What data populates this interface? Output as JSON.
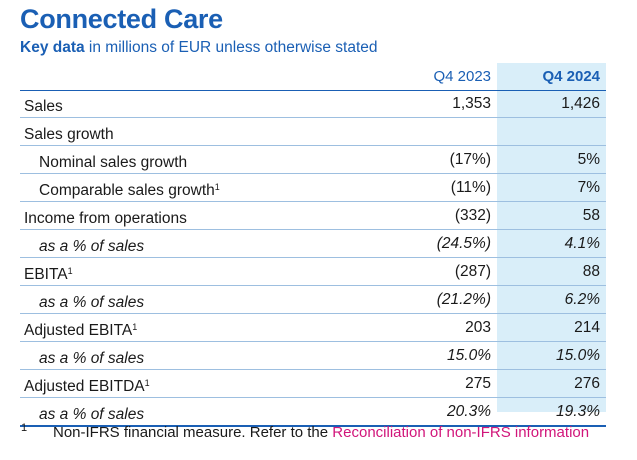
{
  "title": "Connected Care",
  "subtitle": {
    "bold": "Key data",
    "rest": " in millions of EUR unless otherwise stated"
  },
  "columns": {
    "prev": "Q4 2023",
    "curr": "Q4 2024"
  },
  "rows": [
    {
      "label": "Sales",
      "sup": "",
      "prev": "1,353",
      "curr": "1,426"
    },
    {
      "label": "Sales growth",
      "sup": "",
      "prev": "",
      "curr": ""
    },
    {
      "label": "Nominal sales growth",
      "sup": "",
      "prev": "(17%)",
      "curr": "5%"
    },
    {
      "label": "Comparable sales growth",
      "sup": "1",
      "prev": "(11%)",
      "curr": "7%"
    },
    {
      "label": "Income from operations",
      "sup": "",
      "prev": "(332)",
      "curr": "58"
    },
    {
      "label": "as a % of sales",
      "sup": "",
      "prev": "(24.5%)",
      "curr": "4.1%"
    },
    {
      "label": "EBITA",
      "sup": "1",
      "prev": "(287)",
      "curr": "88"
    },
    {
      "label": "as a % of sales",
      "sup": "",
      "prev": "(21.2%)",
      "curr": "6.2%"
    },
    {
      "label": "Adjusted EBITA",
      "sup": "1",
      "prev": "203",
      "curr": "214"
    },
    {
      "label": "as a % of sales",
      "sup": "",
      "prev": "15.0%",
      "curr": "15.0%"
    },
    {
      "label": "Adjusted EBITDA",
      "sup": "1",
      "prev": "275",
      "curr": "276"
    },
    {
      "label": "as a % of sales",
      "sup": "",
      "prev": "20.3%",
      "curr": "19.3%"
    }
  ],
  "footnote": {
    "mark": "1",
    "text": "Non-IFRS financial measure. Refer to the ",
    "link": "Reconciliation of non-IFRS information"
  },
  "colors": {
    "brand_blue": "#1a5fb4",
    "highlight": "#d9eef9",
    "link": "#d1157a"
  }
}
